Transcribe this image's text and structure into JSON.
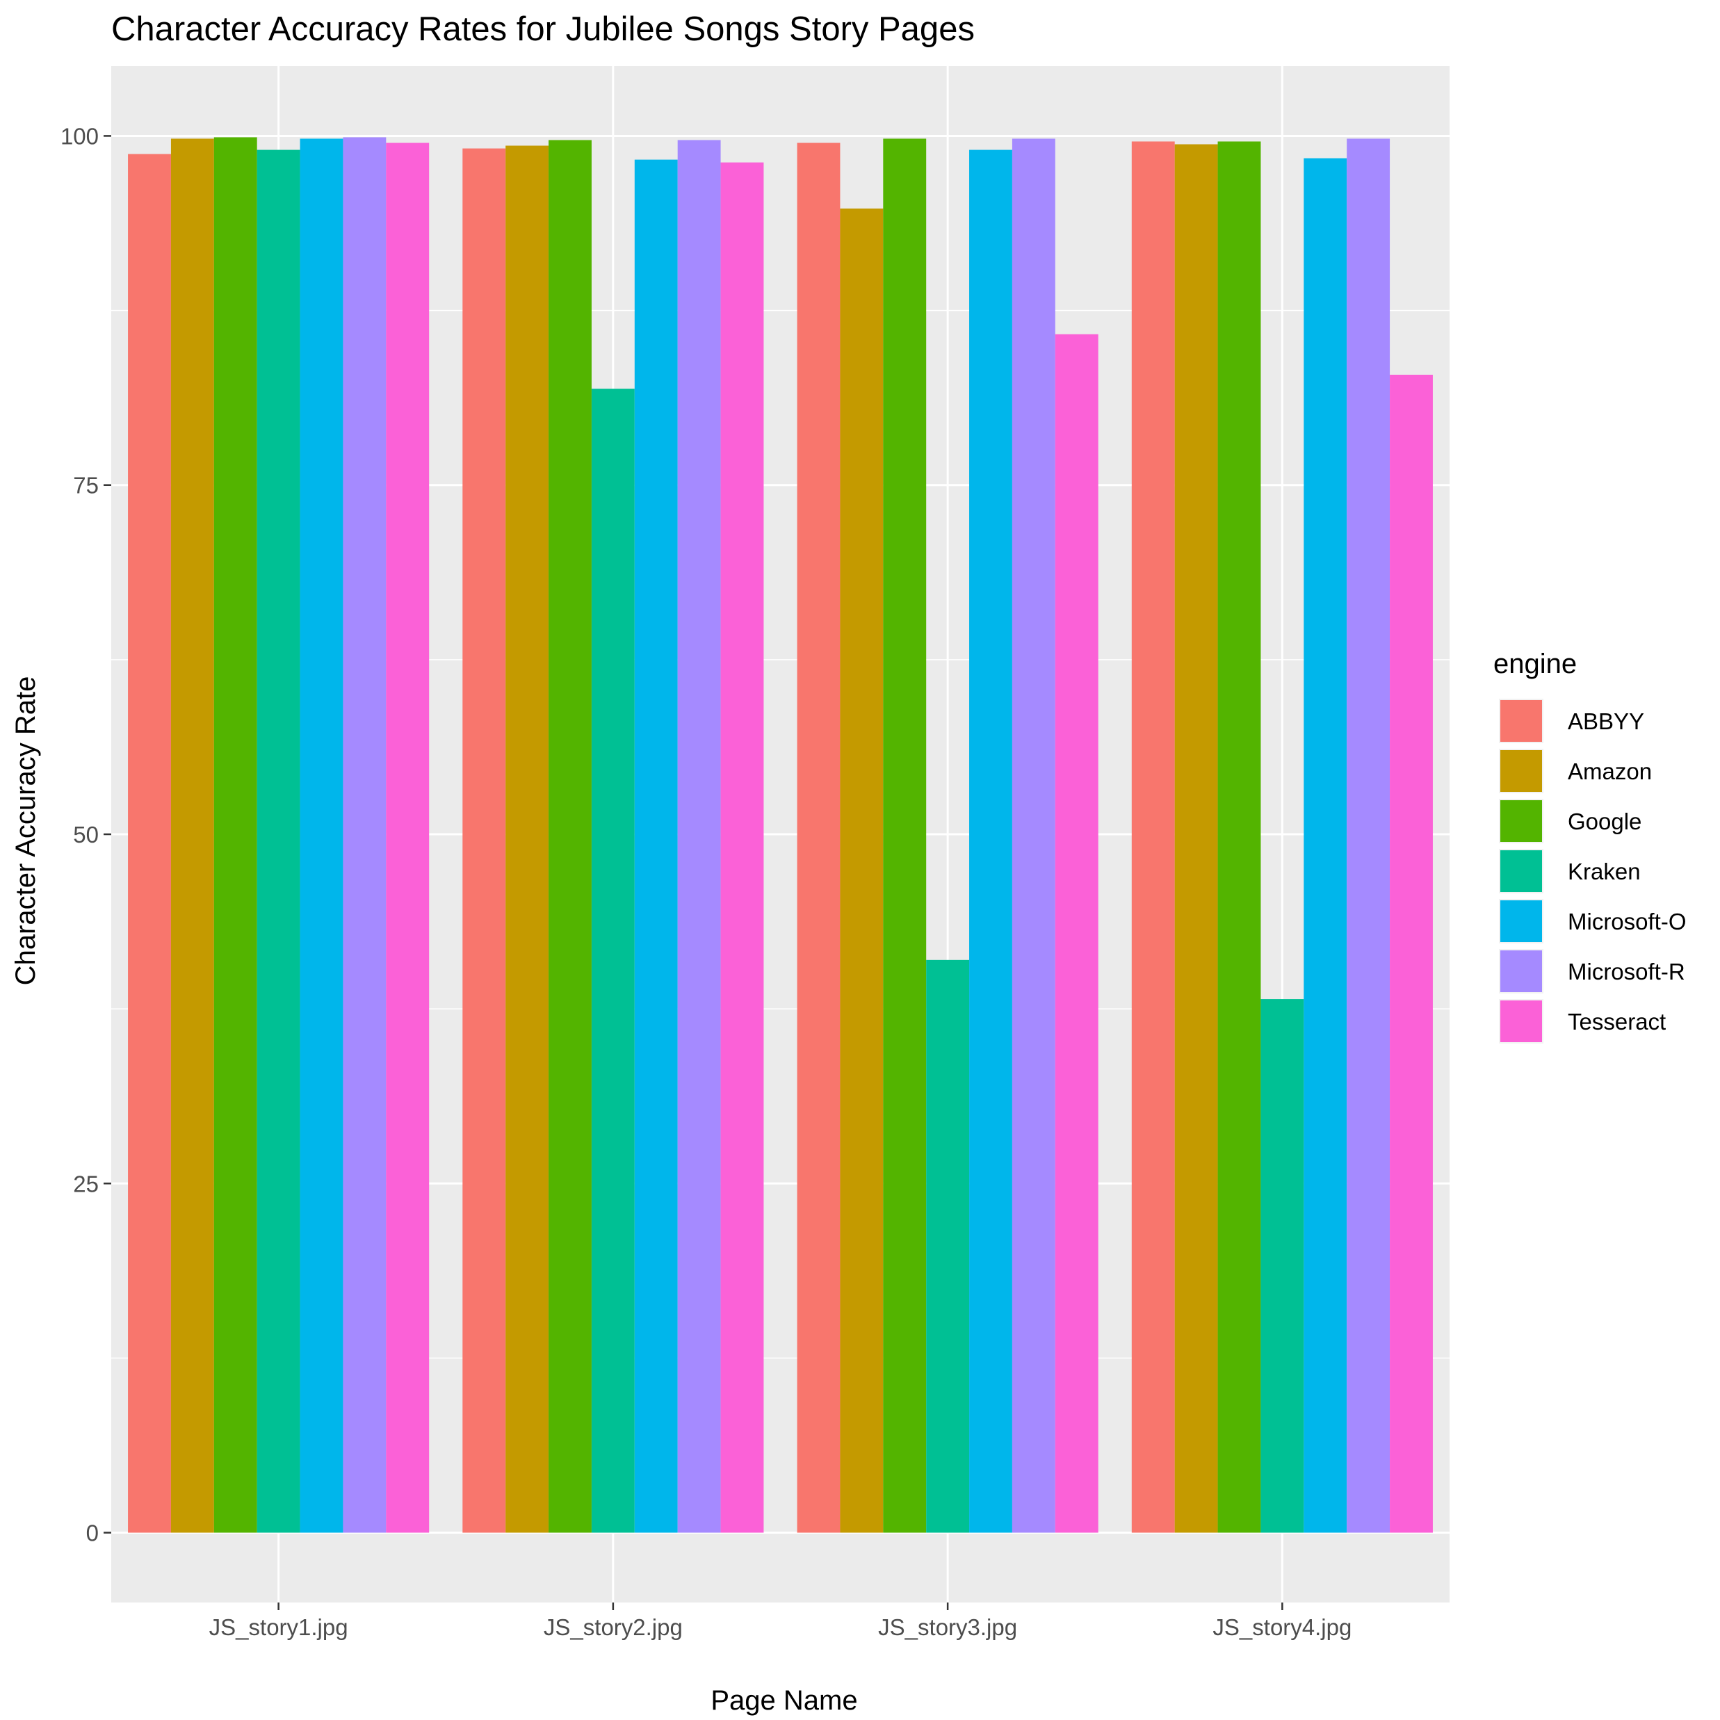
{
  "chart_data": {
    "type": "bar",
    "title": "Character Accuracy Rates for Jubilee Songs Story Pages",
    "xlabel": "Page Name",
    "ylabel": "Character Accuracy Rate",
    "categories": [
      "JS_story1.jpg",
      "JS_story2.jpg",
      "JS_story3.jpg",
      "JS_story4.jpg"
    ],
    "ylim": [
      -5,
      105
    ],
    "yticks": [
      0,
      25,
      50,
      75,
      100
    ],
    "grid": true,
    "legend": {
      "title": "engine",
      "position": "right"
    },
    "series": [
      {
        "name": "ABBYY",
        "color": "#F8766D",
        "values": [
          98.7,
          99.1,
          99.5,
          99.6
        ]
      },
      {
        "name": "Amazon",
        "color": "#C49A00",
        "values": [
          99.8,
          99.3,
          94.8,
          99.4
        ]
      },
      {
        "name": "Google",
        "color": "#53B400",
        "values": [
          99.9,
          99.7,
          99.8,
          99.6
        ]
      },
      {
        "name": "Kraken",
        "color": "#00C094",
        "values": [
          99.0,
          81.9,
          41.0,
          38.2
        ]
      },
      {
        "name": "Microsoft-O",
        "color": "#00B6EB",
        "values": [
          99.8,
          98.3,
          99.0,
          98.4
        ]
      },
      {
        "name": "Microsoft-R",
        "color": "#A58AFF",
        "values": [
          99.9,
          99.7,
          99.8,
          99.8
        ]
      },
      {
        "name": "Tesseract",
        "color": "#FB61D7",
        "values": [
          99.5,
          98.1,
          85.8,
          82.9
        ]
      }
    ]
  }
}
